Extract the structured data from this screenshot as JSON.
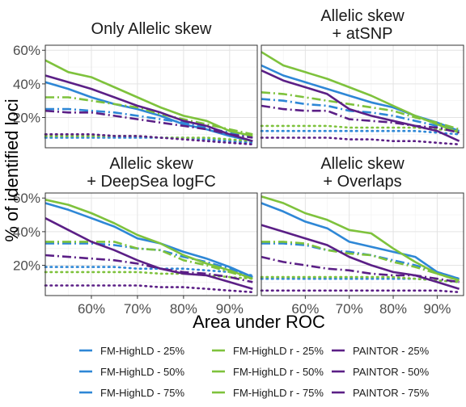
{
  "chart_data": {
    "type": "line",
    "xlabel": "Area under ROC",
    "ylabel": "% of identified loci",
    "x": [
      0.5,
      0.55,
      0.6,
      0.65,
      0.7,
      0.75,
      0.8,
      0.85,
      0.9,
      0.95
    ],
    "xlim": [
      0.5,
      0.96
    ],
    "ylim": [
      0.02,
      0.63
    ],
    "x_ticks": [
      0.6,
      0.7,
      0.8,
      0.9
    ],
    "x_tick_labels": [
      "60%",
      "70%",
      "80%",
      "90%"
    ],
    "y_ticks": [
      0.2,
      0.4,
      0.6
    ],
    "y_tick_labels": [
      "20%",
      "40%",
      "60%"
    ],
    "grid": true,
    "legend_position": "bottom",
    "series_styles": [
      {
        "name": "FM-HighLD - 25%",
        "color": "#2e87d6",
        "dash": "dotted"
      },
      {
        "name": "FM-HighLD - 50%",
        "color": "#2e87d6",
        "dash": "dashdot"
      },
      {
        "name": "FM-HighLD - 75%",
        "color": "#2e87d6",
        "dash": "solid"
      },
      {
        "name": "FM-HighLD r - 25%",
        "color": "#7ec23c",
        "dash": "dotted"
      },
      {
        "name": "FM-HighLD r - 50%",
        "color": "#7ec23c",
        "dash": "dashdot"
      },
      {
        "name": "FM-HighLD r - 75%",
        "color": "#7ec23c",
        "dash": "solid"
      },
      {
        "name": "PAINTOR - 25%",
        "color": "#5b1f86",
        "dash": "dotted"
      },
      {
        "name": "PAINTOR - 50%",
        "color": "#5b1f86",
        "dash": "dashdot"
      },
      {
        "name": "PAINTOR - 75%",
        "color": "#5b1f86",
        "dash": "solid"
      }
    ],
    "legend_order": [
      "FM-HighLD - 25%",
      "FM-HighLD - 50%",
      "FM-HighLD - 75%",
      "FM-HighLD r - 25%",
      "FM-HighLD r - 50%",
      "FM-HighLD r - 75%",
      "PAINTOR - 25%",
      "PAINTOR - 50%",
      "PAINTOR - 75%"
    ],
    "panels": [
      {
        "title_lines": [
          "Only Allelic skew"
        ],
        "series": [
          {
            "name": "FM-HighLD - 25%",
            "values": [
              0.08,
              0.08,
              0.08,
              0.08,
              0.08,
              0.08,
              0.08,
              0.07,
              0.06,
              0.05
            ]
          },
          {
            "name": "FM-HighLD - 50%",
            "values": [
              0.25,
              0.25,
              0.24,
              0.23,
              0.21,
              0.19,
              0.17,
              0.14,
              0.11,
              0.08
            ]
          },
          {
            "name": "FM-HighLD - 75%",
            "values": [
              0.41,
              0.37,
              0.32,
              0.28,
              0.25,
              0.21,
              0.16,
              0.13,
              0.09,
              0.06
            ]
          },
          {
            "name": "FM-HighLD r - 25%",
            "values": [
              0.09,
              0.09,
              0.09,
              0.09,
              0.09,
              0.08,
              0.08,
              0.08,
              0.07,
              0.06
            ]
          },
          {
            "name": "FM-HighLD r - 50%",
            "values": [
              0.32,
              0.32,
              0.3,
              0.28,
              0.26,
              0.22,
              0.19,
              0.16,
              0.13,
              0.1
            ]
          },
          {
            "name": "FM-HighLD r - 75%",
            "values": [
              0.54,
              0.47,
              0.44,
              0.38,
              0.32,
              0.26,
              0.21,
              0.18,
              0.12,
              0.09
            ]
          },
          {
            "name": "PAINTOR - 25%",
            "values": [
              0.1,
              0.1,
              0.1,
              0.09,
              0.09,
              0.08,
              0.07,
              0.06,
              0.05,
              0.04
            ]
          },
          {
            "name": "PAINTOR - 50%",
            "values": [
              0.24,
              0.23,
              0.23,
              0.21,
              0.19,
              0.17,
              0.15,
              0.13,
              0.1,
              0.08
            ]
          },
          {
            "name": "PAINTOR - 75%",
            "values": [
              0.45,
              0.41,
              0.37,
              0.32,
              0.27,
              0.23,
              0.18,
              0.15,
              0.1,
              0.06
            ]
          }
        ]
      },
      {
        "title_lines": [
          "Allelic skew",
          "+ atSNP"
        ],
        "series": [
          {
            "name": "FM-HighLD - 25%",
            "values": [
              0.12,
              0.12,
              0.12,
              0.12,
              0.12,
              0.12,
              0.12,
              0.12,
              0.11,
              0.1
            ]
          },
          {
            "name": "FM-HighLD - 50%",
            "values": [
              0.31,
              0.3,
              0.28,
              0.27,
              0.24,
              0.23,
              0.21,
              0.18,
              0.15,
              0.11
            ]
          },
          {
            "name": "FM-HighLD - 75%",
            "values": [
              0.51,
              0.45,
              0.41,
              0.37,
              0.33,
              0.29,
              0.26,
              0.21,
              0.17,
              0.12
            ]
          },
          {
            "name": "FM-HighLD r - 25%",
            "values": [
              0.15,
              0.15,
              0.15,
              0.15,
              0.14,
              0.14,
              0.14,
              0.14,
              0.13,
              0.12
            ]
          },
          {
            "name": "FM-HighLD r - 50%",
            "values": [
              0.35,
              0.34,
              0.32,
              0.3,
              0.28,
              0.26,
              0.24,
              0.2,
              0.17,
              0.13
            ]
          },
          {
            "name": "FM-HighLD r - 75%",
            "values": [
              0.59,
              0.51,
              0.47,
              0.43,
              0.38,
              0.33,
              0.27,
              0.21,
              0.16,
              0.11
            ]
          },
          {
            "name": "PAINTOR - 25%",
            "values": [
              0.08,
              0.08,
              0.08,
              0.08,
              0.07,
              0.07,
              0.06,
              0.06,
              0.05,
              0.04
            ]
          },
          {
            "name": "PAINTOR - 50%",
            "values": [
              0.27,
              0.25,
              0.24,
              0.24,
              0.19,
              0.18,
              0.17,
              0.15,
              0.14,
              0.11
            ]
          },
          {
            "name": "PAINTOR - 75%",
            "values": [
              0.48,
              0.42,
              0.38,
              0.34,
              0.25,
              0.21,
              0.18,
              0.15,
              0.12,
              0.06
            ]
          }
        ]
      },
      {
        "title_lines": [
          "Allelic skew",
          "+ DeepSea logFC"
        ],
        "series": [
          {
            "name": "FM-HighLD - 25%",
            "values": [
              0.19,
              0.19,
              0.19,
              0.19,
              0.18,
              0.18,
              0.18,
              0.17,
              0.16,
              0.14
            ]
          },
          {
            "name": "FM-HighLD - 50%",
            "values": [
              0.33,
              0.33,
              0.33,
              0.32,
              0.3,
              0.29,
              0.25,
              0.22,
              0.18,
              0.13
            ]
          },
          {
            "name": "FM-HighLD - 75%",
            "values": [
              0.57,
              0.53,
              0.48,
              0.43,
              0.36,
              0.33,
              0.28,
              0.24,
              0.19,
              0.13
            ]
          },
          {
            "name": "FM-HighLD r - 25%",
            "values": [
              0.16,
              0.16,
              0.16,
              0.16,
              0.16,
              0.15,
              0.15,
              0.14,
              0.13,
              0.12
            ]
          },
          {
            "name": "FM-HighLD r - 50%",
            "values": [
              0.34,
              0.34,
              0.34,
              0.34,
              0.3,
              0.29,
              0.23,
              0.2,
              0.16,
              0.12
            ]
          },
          {
            "name": "FM-HighLD r - 75%",
            "values": [
              0.59,
              0.56,
              0.51,
              0.45,
              0.38,
              0.33,
              0.26,
              0.21,
              0.17,
              0.12
            ]
          },
          {
            "name": "PAINTOR - 25%",
            "values": [
              0.08,
              0.08,
              0.08,
              0.08,
              0.08,
              0.07,
              0.07,
              0.06,
              0.05,
              0.04
            ]
          },
          {
            "name": "PAINTOR - 50%",
            "values": [
              0.26,
              0.25,
              0.24,
              0.23,
              0.21,
              0.18,
              0.16,
              0.15,
              0.13,
              0.1
            ]
          },
          {
            "name": "PAINTOR - 75%",
            "values": [
              0.48,
              0.41,
              0.34,
              0.29,
              0.23,
              0.18,
              0.15,
              0.14,
              0.1,
              0.06
            ]
          }
        ]
      },
      {
        "title_lines": [
          "Allelic skew",
          "+ Overlaps"
        ],
        "series": [
          {
            "name": "FM-HighLD - 25%",
            "values": [
              0.12,
              0.12,
              0.12,
              0.12,
              0.12,
              0.12,
              0.12,
              0.12,
              0.11,
              0.1
            ]
          },
          {
            "name": "FM-HighLD - 50%",
            "values": [
              0.33,
              0.33,
              0.32,
              0.29,
              0.28,
              0.26,
              0.23,
              0.2,
              0.16,
              0.12
            ]
          },
          {
            "name": "FM-HighLD - 75%",
            "values": [
              0.57,
              0.52,
              0.46,
              0.42,
              0.34,
              0.31,
              0.28,
              0.25,
              0.16,
              0.12
            ]
          },
          {
            "name": "FM-HighLD r - 25%",
            "values": [
              0.13,
              0.13,
              0.13,
              0.13,
              0.13,
              0.13,
              0.13,
              0.12,
              0.11,
              0.1
            ]
          },
          {
            "name": "FM-HighLD r - 50%",
            "values": [
              0.34,
              0.34,
              0.33,
              0.29,
              0.27,
              0.26,
              0.22,
              0.19,
              0.15,
              0.11
            ]
          },
          {
            "name": "FM-HighLD r - 75%",
            "values": [
              0.61,
              0.57,
              0.51,
              0.47,
              0.41,
              0.39,
              0.3,
              0.22,
              0.15,
              0.11
            ]
          },
          {
            "name": "PAINTOR - 25%",
            "values": [
              0.05,
              0.05,
              0.05,
              0.05,
              0.05,
              0.05,
              0.05,
              0.05,
              0.05,
              0.04
            ]
          },
          {
            "name": "PAINTOR - 50%",
            "values": [
              0.25,
              0.22,
              0.2,
              0.18,
              0.17,
              0.15,
              0.14,
              0.14,
              0.12,
              0.1
            ]
          },
          {
            "name": "PAINTOR - 75%",
            "values": [
              0.44,
              0.4,
              0.36,
              0.32,
              0.25,
              0.2,
              0.16,
              0.14,
              0.1,
              0.06
            ]
          }
        ]
      }
    ]
  }
}
